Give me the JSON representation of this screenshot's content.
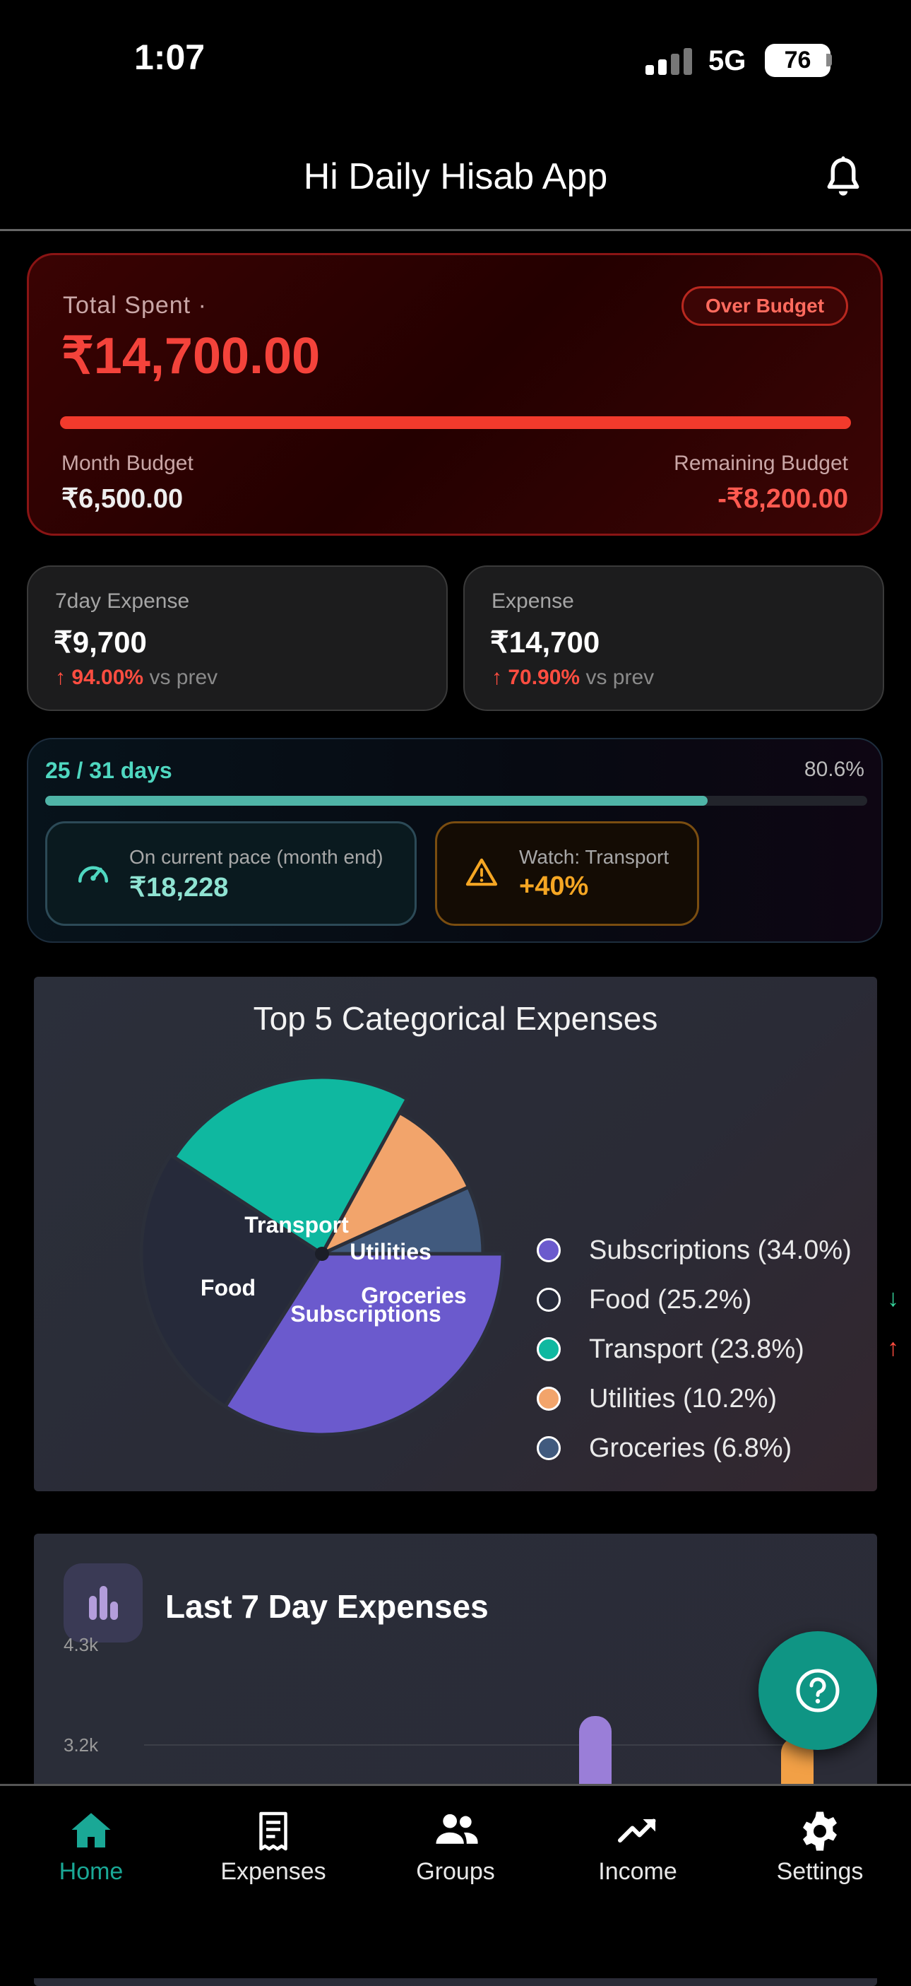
{
  "status_bar": {
    "time": "1:07",
    "network": "5G",
    "battery": "76"
  },
  "header": {
    "title": "Hi Daily Hisab App"
  },
  "summary": {
    "total_spent_label": "Total Spent ·",
    "total_spent_value": "₹14,700.00",
    "badge": "Over Budget",
    "month_budget_label": "Month Budget",
    "month_budget_value": "₹6,500.00",
    "remaining_budget_label": "Remaining Budget",
    "remaining_budget_value": "-₹8,200.00",
    "spent_fraction_of_budget_bar": 1.0
  },
  "stats": [
    {
      "label": "7day Expense",
      "value": "₹9,700",
      "delta": "94.00%",
      "delta_suffix": "vs prev"
    },
    {
      "label": "Expense",
      "value": "₹14,700",
      "delta": "70.90%",
      "delta_suffix": "vs prev"
    }
  ],
  "month_progress": {
    "days": "25 / 31 days",
    "percent_text": "80.6%",
    "fraction": 0.806,
    "pace_label": "On current pace (month end)",
    "pace_value": "₹18,228",
    "watch_label": "Watch: Transport",
    "watch_value": "+40%"
  },
  "pie": {
    "title": "Top 5 Categorical Expenses",
    "legend": [
      {
        "name": "Subscriptions",
        "pct": 34.0,
        "text": "Subscriptions (34.0%)",
        "trend": ""
      },
      {
        "name": "Food",
        "pct": 25.2,
        "text": "Food (25.2%)",
        "trend": "↓"
      },
      {
        "name": "Transport",
        "pct": 23.8,
        "text": "Transport (23.8%)",
        "trend": "↑"
      },
      {
        "name": "Utilities",
        "pct": 10.2,
        "text": "Utilities (10.2%)",
        "trend": ""
      },
      {
        "name": "Groceries",
        "pct": 6.8,
        "text": "Groceries (6.8%)",
        "trend": ""
      }
    ]
  },
  "chart_data": {
    "type": "pie",
    "title": "Top 5 Categorical Expenses",
    "categories": [
      "Subscriptions",
      "Food",
      "Transport",
      "Utilities",
      "Groceries"
    ],
    "values": [
      34.0,
      25.2,
      23.8,
      10.2,
      6.8
    ],
    "colors": [
      "#6b5acd",
      "#262a3a",
      "#0fb8a0",
      "#f2a46b",
      "#415a7e"
    ]
  },
  "last7": {
    "title": "Last 7 Day Expenses",
    "yticks": [
      "4.3k",
      "3.2k"
    ]
  },
  "colors": {
    "accent": "#0f9584",
    "danger": "#f23a2c",
    "teal": "#4fd7c0",
    "warning": "#f5a623"
  },
  "nav": [
    {
      "label": "Home",
      "icon": "home-icon",
      "active": true
    },
    {
      "label": "Expenses",
      "icon": "receipt-icon",
      "active": false
    },
    {
      "label": "Groups",
      "icon": "people-icon",
      "active": false
    },
    {
      "label": "Income",
      "icon": "trending-up-icon",
      "active": false
    },
    {
      "label": "Settings",
      "icon": "gear-icon",
      "active": false
    }
  ]
}
